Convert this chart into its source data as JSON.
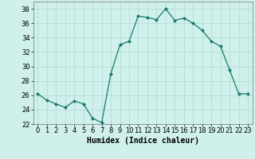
{
  "x": [
    0,
    1,
    2,
    3,
    4,
    5,
    6,
    7,
    8,
    9,
    10,
    11,
    12,
    13,
    14,
    15,
    16,
    17,
    18,
    19,
    20,
    21,
    22,
    23
  ],
  "y": [
    26.2,
    25.3,
    24.8,
    24.3,
    25.2,
    24.8,
    22.8,
    22.2,
    29.0,
    33.0,
    33.5,
    37.0,
    36.8,
    36.5,
    38.0,
    36.4,
    36.7,
    36.0,
    35.0,
    33.5,
    32.8,
    29.5,
    26.2,
    26.2
  ],
  "line_color": "#1a7a6e",
  "marker": "D",
  "marker_size": 2.0,
  "bg_color": "#cff0eb",
  "grid_color": "#b0d8d2",
  "xlabel": "Humidex (Indice chaleur)",
  "xlim": [
    -0.5,
    23.5
  ],
  "ylim": [
    22,
    39
  ],
  "yticks": [
    22,
    24,
    26,
    28,
    30,
    32,
    34,
    36,
    38
  ],
  "xticks": [
    0,
    1,
    2,
    3,
    4,
    5,
    6,
    7,
    8,
    9,
    10,
    11,
    12,
    13,
    14,
    15,
    16,
    17,
    18,
    19,
    20,
    21,
    22,
    23
  ],
  "tick_fontsize": 6.0,
  "xlabel_fontsize": 7.0
}
